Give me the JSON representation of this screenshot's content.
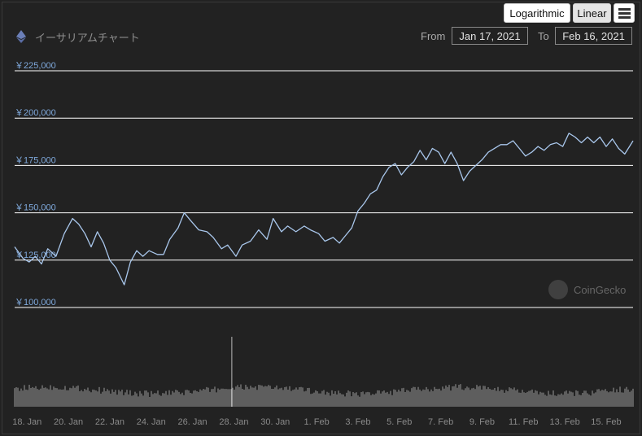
{
  "toolbar": {
    "log_label": "Logarithmic",
    "linear_label": "Linear",
    "menu_icon": "hamburger-menu-icon"
  },
  "header": {
    "coin_icon": "ethereum-icon",
    "title": "イーサリアムチャート",
    "from_label": "From",
    "from_value": "Jan 17, 2021",
    "to_label": "To",
    "to_value": "Feb 16, 2021"
  },
  "watermark": {
    "text": "CoinGecko"
  },
  "colors": {
    "background": "#222222",
    "line": "#a9c7ec",
    "axis_label": "#7fa9dc",
    "grid": "#ffffff",
    "volume": "#9a9a9a"
  },
  "chart_data": {
    "type": "line",
    "title": "イーサリアムチャート",
    "y_scale": "linear",
    "ylim": [
      100000,
      225000
    ],
    "y_ticks": [
      "￥100,000",
      "￥125,000",
      "￥150,000",
      "￥175,000",
      "￥200,000",
      "￥225,000"
    ],
    "y_tick_values": [
      100000,
      125000,
      150000,
      175000,
      200000,
      225000
    ],
    "x_ticks": [
      "18. Jan",
      "20. Jan",
      "22. Jan",
      "24. Jan",
      "26. Jan",
      "28. Jan",
      "30. Jan",
      "1. Feb",
      "3. Feb",
      "5. Feb",
      "7. Feb",
      "9. Feb",
      "11. Feb",
      "13. Feb",
      "15. Feb"
    ],
    "x_range_days": [
      0,
      29.9
    ],
    "x_tick_positions_days": [
      0.6,
      2.6,
      4.6,
      6.6,
      8.6,
      10.6,
      12.6,
      14.6,
      16.6,
      18.6,
      20.6,
      22.6,
      24.6,
      26.6,
      28.6
    ],
    "series": [
      {
        "x_days": [
          0,
          0.4,
          0.7,
          1.0,
          1.3,
          1.6,
          2.0,
          2.4,
          2.8,
          3.1,
          3.4,
          3.7,
          4.0,
          4.3,
          4.6,
          4.9,
          5.3,
          5.6,
          5.9,
          6.2,
          6.5,
          6.9,
          7.2,
          7.5,
          7.9,
          8.2,
          8.5,
          8.9,
          9.3,
          9.6,
          10.0,
          10.3,
          10.7,
          11.0,
          11.4,
          11.8,
          12.2,
          12.5,
          12.9,
          13.2,
          13.6,
          14.0,
          14.3,
          14.7,
          15.0,
          15.4,
          15.7,
          16.0,
          16.3,
          16.6,
          16.9,
          17.2,
          17.5,
          17.8,
          18.1,
          18.4,
          18.7,
          19.0,
          19.3,
          19.6,
          19.9,
          20.2,
          20.5,
          20.8,
          21.1,
          21.4,
          21.7,
          22.0,
          22.3,
          22.6,
          22.9,
          23.2,
          23.5,
          23.8,
          24.1,
          24.4,
          24.7,
          25.0,
          25.3,
          25.6,
          25.9,
          26.2,
          26.5,
          26.8,
          27.1,
          27.4,
          27.7,
          28.0,
          28.3,
          28.6,
          28.9,
          29.2,
          29.5,
          29.9
        ],
        "values": [
          132000,
          126000,
          124000,
          127000,
          123000,
          131000,
          127000,
          139000,
          147000,
          144000,
          139000,
          132000,
          140000,
          134000,
          125000,
          121000,
          112000,
          124000,
          130000,
          127000,
          130000,
          128000,
          128000,
          136000,
          142000,
          150000,
          146000,
          141000,
          140000,
          137000,
          131000,
          133000,
          127000,
          133000,
          135000,
          141000,
          136000,
          147000,
          140000,
          143000,
          140000,
          143000,
          141000,
          139000,
          135000,
          137000,
          134000,
          138000,
          142000,
          151000,
          155000,
          160000,
          162000,
          169000,
          174000,
          176000,
          170000,
          174000,
          177000,
          183000,
          178000,
          184000,
          182000,
          176000,
          182000,
          176000,
          167000,
          172000,
          175000,
          178000,
          182000,
          184000,
          186000,
          186000,
          188000,
          184000,
          180000,
          182000,
          185000,
          183000,
          186000,
          187000,
          185000,
          192000,
          190000,
          187000,
          190000,
          187000,
          190000,
          185000,
          189000,
          184000,
          181000,
          188000
        ]
      }
    ],
    "volume": {
      "note": "relative trading volume bars",
      "spike_day": 10.5
    }
  }
}
